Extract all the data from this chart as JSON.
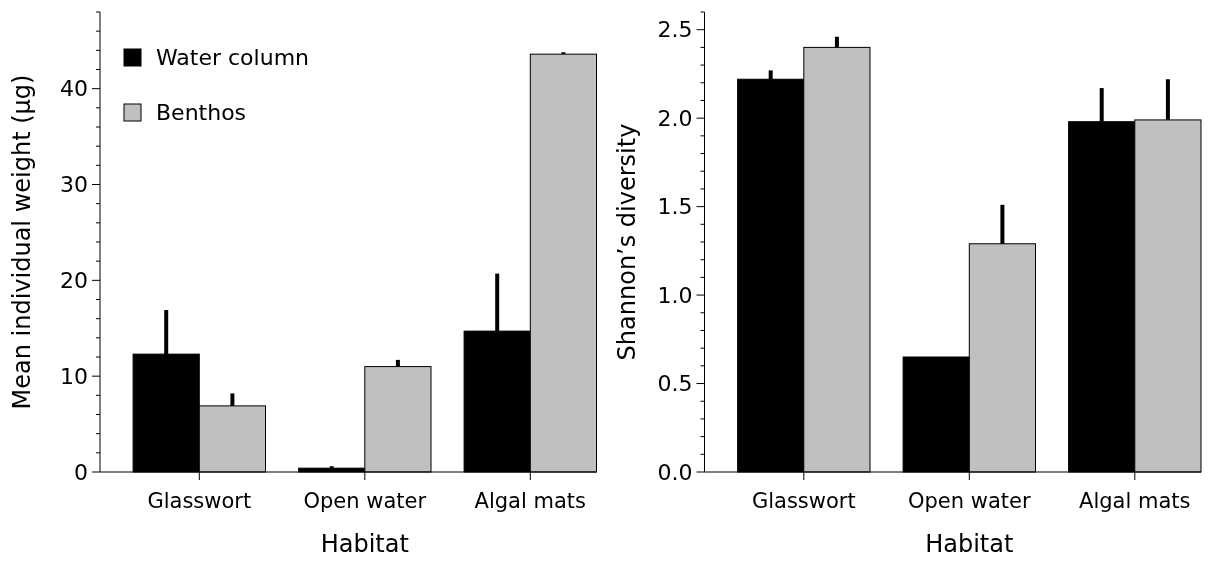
{
  "chart_data": [
    {
      "type": "bar",
      "xlabel": "Habitat",
      "ylabel": "Mean individual weight (µg)",
      "categories": [
        "Glasswort",
        "Open water",
        "Algal mats"
      ],
      "series": [
        {
          "name": "Water column",
          "color": "#000000",
          "values": [
            12.3,
            0.4,
            14.7
          ],
          "errors": [
            [
              12.3,
              16.9
            ],
            [
              0.4,
              0.6
            ],
            [
              14.7,
              20.7
            ]
          ]
        },
        {
          "name": "Benthos",
          "color": "#c0c0c0",
          "values": [
            6.9,
            11.0,
            43.6
          ],
          "errors": [
            [
              6.9,
              8.2
            ],
            [
              11.0,
              11.7
            ],
            [
              43.6,
              43.8
            ]
          ]
        }
      ],
      "ylim": [
        0,
        48
      ],
      "yticks": [
        0,
        {
          "value": 2,
          "label": null
        },
        {
          "value": 4,
          "label": null
        },
        {
          "value": 6,
          "label": null
        },
        {
          "value": 8,
          "label": null
        },
        10,
        {
          "value": 12,
          "label": null
        },
        {
          "value": 14,
          "label": null
        },
        {
          "value": 16,
          "label": null
        },
        {
          "value": 18,
          "label": null
        },
        20,
        {
          "value": 22,
          "label": null
        },
        {
          "value": 24,
          "label": null
        },
        {
          "value": 26,
          "label": null
        },
        {
          "value": 28,
          "label": null
        },
        30,
        {
          "value": 32,
          "label": null
        },
        {
          "value": 34,
          "label": null
        },
        {
          "value": 36,
          "label": null
        },
        {
          "value": 38,
          "label": null
        },
        40,
        {
          "value": 42,
          "label": null
        },
        {
          "value": 44,
          "label": null
        },
        {
          "value": 46,
          "label": null
        },
        {
          "value": 48,
          "label": null
        }
      ],
      "legend": "top left"
    },
    {
      "type": "bar",
      "xlabel": "Habitat",
      "ylabel": "Shannon’s diversity",
      "categories": [
        "Glasswort",
        "Open water",
        "Algal mats"
      ],
      "series": [
        {
          "color": "#000000",
          "values": [
            2.22,
            0.65,
            1.98
          ],
          "errors": [
            [
              2.22,
              2.27
            ],
            null,
            [
              1.98,
              2.17
            ]
          ]
        },
        {
          "color": "#c0c0c0",
          "values": [
            2.4,
            1.29,
            1.99
          ],
          "errors": [
            [
              2.4,
              2.46
            ],
            [
              1.29,
              1.51
            ],
            [
              1.99,
              2.22
            ]
          ]
        }
      ],
      "ylim": [
        0,
        2.6
      ],
      "yticks": [
        {
          "value": 0,
          "label": "0.0"
        },
        {
          "value": 0.1,
          "label": null
        },
        {
          "value": 0.2,
          "label": null
        },
        {
          "value": 0.3,
          "label": null
        },
        {
          "value": 0.4,
          "label": null
        },
        {
          "value": 0.5,
          "label": "0.5"
        },
        {
          "value": 0.6,
          "label": null
        },
        {
          "value": 0.7,
          "label": null
        },
        {
          "value": 0.8,
          "label": null
        },
        {
          "value": 0.9,
          "label": null
        },
        {
          "value": 1,
          "label": "1.0"
        },
        {
          "value": 1.1,
          "label": null
        },
        {
          "value": 1.2,
          "label": null
        },
        {
          "value": 1.3,
          "label": null
        },
        {
          "value": 1.4,
          "label": null
        },
        {
          "value": 1.5,
          "label": "1.5"
        },
        {
          "value": 1.6,
          "label": null
        },
        {
          "value": 1.7,
          "label": null
        },
        {
          "value": 1.8,
          "label": null
        },
        {
          "value": 1.9,
          "label": null
        },
        {
          "value": 2,
          "label": "2.0"
        },
        {
          "value": 2.1,
          "label": null
        },
        {
          "value": 2.2,
          "label": null
        },
        {
          "value": 2.3,
          "label": null
        },
        {
          "value": 2.4,
          "label": null
        },
        {
          "value": 2.5,
          "label": "2.5"
        },
        {
          "value": 2.6,
          "label": null
        }
      ],
      "legend": false
    }
  ]
}
